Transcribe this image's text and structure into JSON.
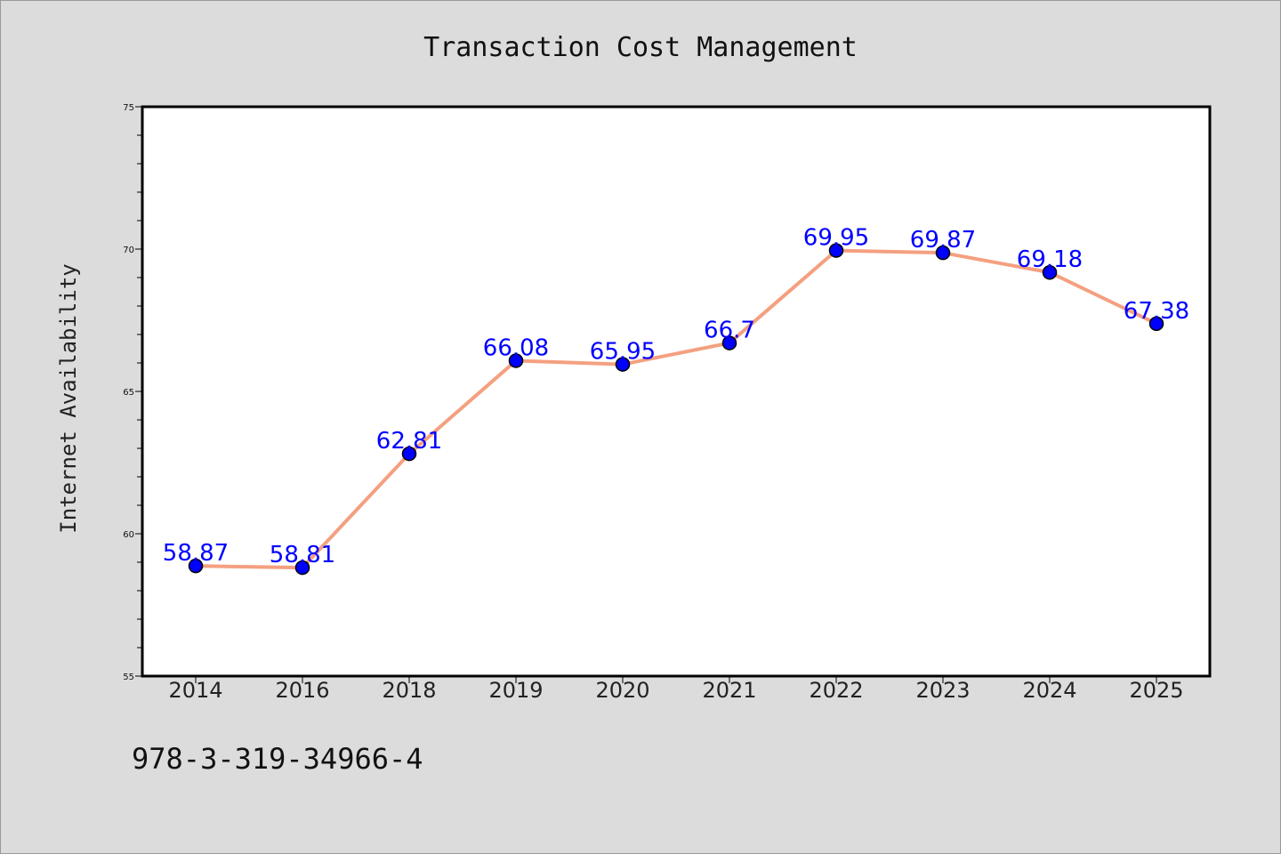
{
  "chart_data": {
    "type": "line",
    "title": "Transaction Cost Management",
    "xlabel": "",
    "ylabel": "Internet Availability",
    "categories": [
      "2014",
      "2016",
      "2018",
      "2019",
      "2020",
      "2021",
      "2022",
      "2023",
      "2024",
      "2025"
    ],
    "series": [
      {
        "values": [
          58.87,
          58.81,
          62.81,
          66.08,
          65.95,
          66.7,
          69.95,
          69.87,
          69.18,
          67.38
        ],
        "data_labels": [
          "58.87",
          "58.81",
          "62.81",
          "66.08",
          "65.95",
          "66.7",
          "69.95",
          "69.87",
          "69.18",
          "67.38"
        ]
      }
    ],
    "ylim": [
      55,
      75
    ],
    "yticks": [
      "55",
      "60",
      "65",
      "70",
      "75"
    ],
    "grid": false,
    "legend": "none",
    "colors": {
      "line": "#f4a080",
      "marker": "#0000ff",
      "marker_edge": "#000000",
      "label": "#0000ff",
      "plot_background": "#ffffff",
      "figure_background": "#dcdcdc"
    }
  },
  "footnote": "978-3-319-34966-4"
}
